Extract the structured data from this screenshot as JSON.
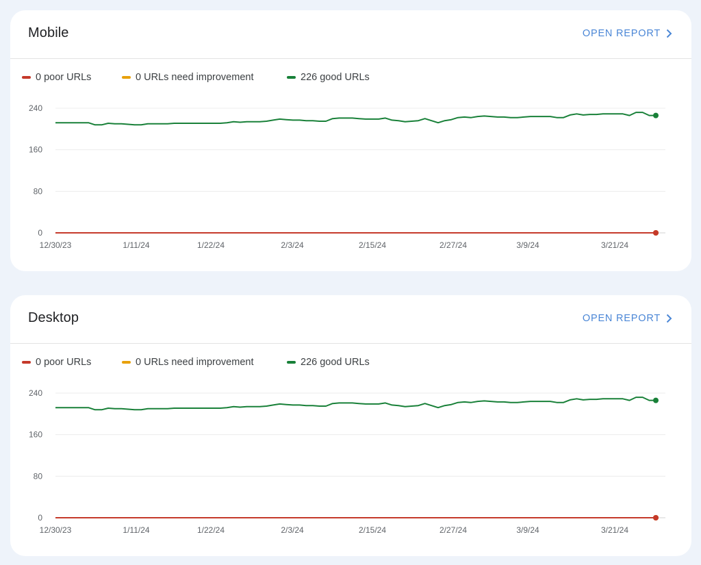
{
  "cards": [
    {
      "title": "Mobile",
      "open_report": "OPEN REPORT",
      "legend": [
        {
          "label": "0 poor URLs",
          "color": "#c5392a"
        },
        {
          "label": "0 URLs need improvement",
          "color": "#e8a10c"
        },
        {
          "label": "226 good URLs",
          "color": "#188038"
        }
      ]
    },
    {
      "title": "Desktop",
      "open_report": "OPEN REPORT",
      "legend": [
        {
          "label": "0 poor URLs",
          "color": "#c5392a"
        },
        {
          "label": "0 URLs need improvement",
          "color": "#e8a10c"
        },
        {
          "label": "226 good URLs",
          "color": "#188038"
        }
      ]
    }
  ],
  "chart_data": [
    {
      "type": "line",
      "title": "Mobile",
      "x_tick_labels": [
        "12/30/23",
        "1/11/24",
        "1/22/24",
        "2/3/24",
        "2/15/24",
        "2/27/24",
        "3/9/24",
        "3/21/24"
      ],
      "y_ticks": [
        0,
        80,
        160,
        240
      ],
      "ylim": [
        0,
        240
      ],
      "grid": true,
      "series": [
        {
          "name": "226 good URLs",
          "color": "#188038",
          "values": [
            212,
            212,
            212,
            212,
            212,
            212,
            208,
            208,
            211,
            210,
            210,
            209,
            208,
            208,
            210,
            210,
            210,
            210,
            211,
            211,
            211,
            211,
            211,
            211,
            211,
            211,
            212,
            214,
            213,
            214,
            214,
            214,
            215,
            217,
            219,
            218,
            217,
            217,
            216,
            216,
            215,
            215,
            220,
            221,
            221,
            221,
            220,
            219,
            219,
            219,
            221,
            217,
            216,
            214,
            215,
            216,
            220,
            216,
            212,
            216,
            218,
            222,
            223,
            222,
            224,
            225,
            224,
            223,
            223,
            222,
            222,
            223,
            224,
            224,
            224,
            224,
            222,
            222,
            227,
            229,
            227,
            228,
            228,
            229,
            229,
            229,
            229,
            226,
            232,
            232,
            226,
            226
          ]
        },
        {
          "name": "0 URLs need improvement",
          "color": "#e8a10c",
          "constant": 0
        },
        {
          "name": "0 poor URLs",
          "color": "#c5392a",
          "constant": 0
        }
      ]
    },
    {
      "type": "line",
      "title": "Desktop",
      "x_tick_labels": [
        "12/30/23",
        "1/11/24",
        "1/22/24",
        "2/3/24",
        "2/15/24",
        "2/27/24",
        "3/9/24",
        "3/21/24"
      ],
      "y_ticks": [
        0,
        80,
        160,
        240
      ],
      "ylim": [
        0,
        240
      ],
      "grid": true,
      "series": [
        {
          "name": "226 good URLs",
          "color": "#188038",
          "values": [
            212,
            212,
            212,
            212,
            212,
            212,
            208,
            208,
            211,
            210,
            210,
            209,
            208,
            208,
            210,
            210,
            210,
            210,
            211,
            211,
            211,
            211,
            211,
            211,
            211,
            211,
            212,
            214,
            213,
            214,
            214,
            214,
            215,
            217,
            219,
            218,
            217,
            217,
            216,
            216,
            215,
            215,
            220,
            221,
            221,
            221,
            220,
            219,
            219,
            219,
            221,
            217,
            216,
            214,
            215,
            216,
            220,
            216,
            212,
            216,
            218,
            222,
            223,
            222,
            224,
            225,
            224,
            223,
            223,
            222,
            222,
            223,
            224,
            224,
            224,
            224,
            222,
            222,
            227,
            229,
            227,
            228,
            228,
            229,
            229,
            229,
            229,
            226,
            232,
            232,
            226,
            226
          ]
        },
        {
          "name": "0 URLs need improvement",
          "color": "#e8a10c",
          "constant": 0
        },
        {
          "name": "0 poor URLs",
          "color": "#c5392a",
          "constant": 0
        }
      ]
    }
  ]
}
